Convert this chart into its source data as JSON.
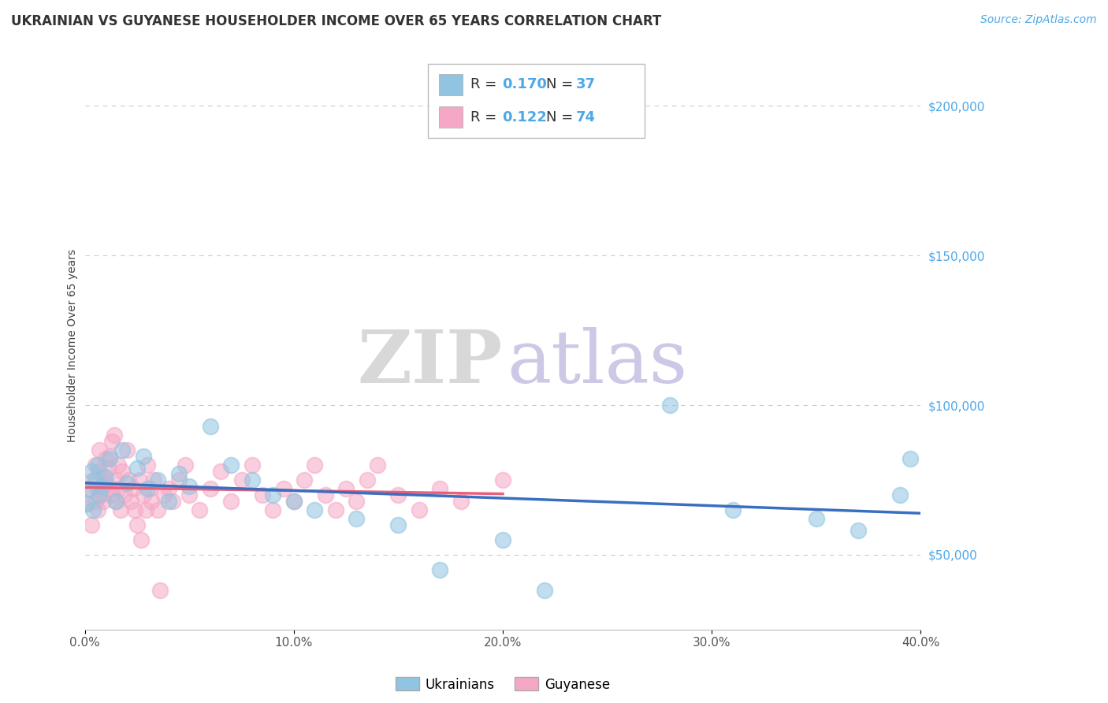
{
  "title": "UKRAINIAN VS GUYANESE HOUSEHOLDER INCOME OVER 65 YEARS CORRELATION CHART",
  "source_text": "Source: ZipAtlas.com",
  "ylabel": "Householder Income Over 65 years",
  "xlim": [
    0.0,
    0.4
  ],
  "ylim": [
    25000,
    215000
  ],
  "yticks": [
    50000,
    100000,
    150000,
    200000
  ],
  "ytick_labels": [
    "$50,000",
    "$100,000",
    "$150,000",
    "$200,000"
  ],
  "xticks": [
    0.0,
    0.1,
    0.2,
    0.3,
    0.4
  ],
  "xtick_labels": [
    "0.0%",
    "10.0%",
    "20.0%",
    "30.0%",
    "40.0%"
  ],
  "ukraine_R": 0.17,
  "ukraine_N": 37,
  "guyanese_R": 0.122,
  "guyanese_N": 74,
  "ukraine_color": "#91C4E0",
  "guyanese_color": "#F5A8C5",
  "ukraine_line_color": "#3A6EC0",
  "guyanese_line_color": "#E8607A",
  "tick_color": "#4DA8E8",
  "background_color": "#FFFFFF",
  "watermark_zip_color": "#D8D8D8",
  "watermark_atlas_color": "#CDC8E5",
  "title_fontsize": 12,
  "axis_label_fontsize": 10,
  "tick_fontsize": 11,
  "legend_fontsize": 13,
  "source_fontsize": 10,
  "uk_x": [
    0.001,
    0.002,
    0.003,
    0.004,
    0.005,
    0.006,
    0.007,
    0.008,
    0.01,
    0.012,
    0.015,
    0.018,
    0.02,
    0.025,
    0.028,
    0.03,
    0.035,
    0.04,
    0.045,
    0.05,
    0.06,
    0.07,
    0.08,
    0.09,
    0.1,
    0.11,
    0.13,
    0.15,
    0.17,
    0.2,
    0.22,
    0.28,
    0.31,
    0.35,
    0.37,
    0.39,
    0.395
  ],
  "uk_y": [
    67000,
    72000,
    78000,
    65000,
    75000,
    80000,
    70000,
    73000,
    76000,
    82000,
    68000,
    85000,
    74000,
    79000,
    83000,
    72000,
    75000,
    68000,
    77000,
    73000,
    93000,
    80000,
    75000,
    70000,
    68000,
    65000,
    62000,
    60000,
    45000,
    55000,
    38000,
    100000,
    65000,
    62000,
    58000,
    70000,
    82000
  ],
  "gy_x": [
    0.001,
    0.002,
    0.003,
    0.004,
    0.005,
    0.005,
    0.006,
    0.006,
    0.007,
    0.007,
    0.008,
    0.008,
    0.009,
    0.009,
    0.01,
    0.01,
    0.011,
    0.012,
    0.012,
    0.013,
    0.013,
    0.014,
    0.015,
    0.015,
    0.016,
    0.016,
    0.017,
    0.018,
    0.019,
    0.02,
    0.021,
    0.022,
    0.023,
    0.024,
    0.025,
    0.026,
    0.027,
    0.028,
    0.029,
    0.03,
    0.031,
    0.032,
    0.033,
    0.035,
    0.036,
    0.038,
    0.04,
    0.042,
    0.045,
    0.048,
    0.05,
    0.055,
    0.06,
    0.065,
    0.07,
    0.075,
    0.08,
    0.085,
    0.09,
    0.095,
    0.1,
    0.105,
    0.11,
    0.115,
    0.12,
    0.125,
    0.13,
    0.135,
    0.14,
    0.15,
    0.16,
    0.17,
    0.18,
    0.2
  ],
  "gy_y": [
    67000,
    72000,
    60000,
    75000,
    68000,
    80000,
    72000,
    65000,
    78000,
    85000,
    70000,
    73000,
    76000,
    68000,
    82000,
    74000,
    79000,
    83000,
    72000,
    88000,
    70000,
    90000,
    75000,
    68000,
    80000,
    72000,
    65000,
    78000,
    70000,
    85000,
    75000,
    68000,
    72000,
    65000,
    60000,
    75000,
    55000,
    70000,
    65000,
    80000,
    72000,
    68000,
    75000,
    65000,
    38000,
    70000,
    72000,
    68000,
    75000,
    80000,
    70000,
    65000,
    72000,
    78000,
    68000,
    75000,
    80000,
    70000,
    65000,
    72000,
    68000,
    75000,
    80000,
    70000,
    65000,
    72000,
    68000,
    75000,
    80000,
    70000,
    65000,
    72000,
    68000,
    75000
  ]
}
